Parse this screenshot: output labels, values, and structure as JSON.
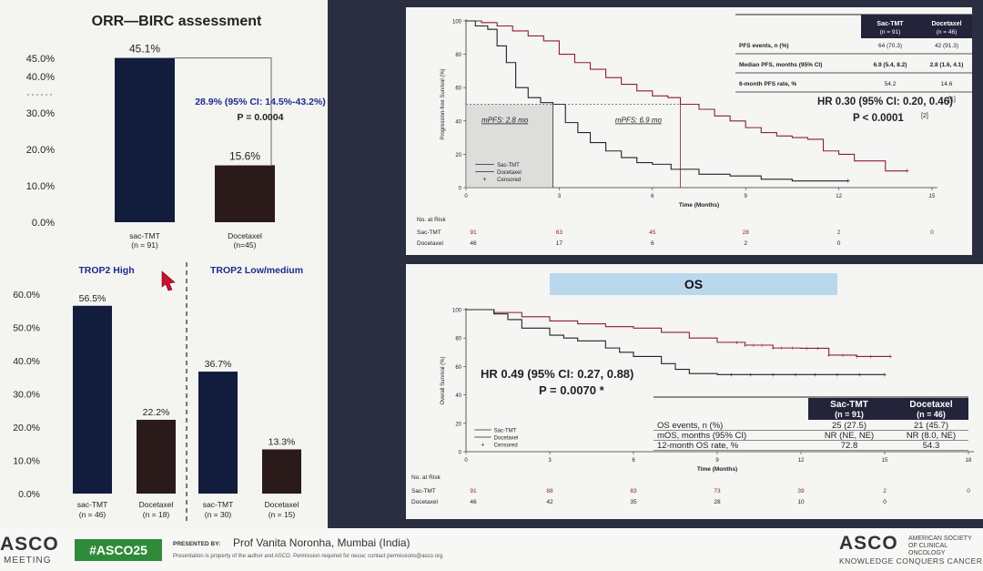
{
  "orr": {
    "title": "ORR—BIRC assessment",
    "yticks": [
      "0.0%",
      "10.0%",
      "20.0%",
      "30.0%",
      "40.0%",
      "45.0%"
    ],
    "bars": [
      {
        "label": "sac-TMT",
        "n": "(n = 91)",
        "value": 45.1,
        "value_label": "45.1%",
        "color": "#121c3c"
      },
      {
        "label": "Docetaxel",
        "n": "(n=45)",
        "value": 15.6,
        "value_label": "15.6%",
        "color": "#2a1a1a"
      }
    ],
    "difference": "28.9% (95% CI: 14.5%-43.2%)",
    "pvalue": "P = 0.0004"
  },
  "trop": {
    "high_title": "TROP2 High",
    "low_title": "TROP2 Low/medium",
    "yticks": [
      "0.0%",
      "10.0%",
      "20.0%",
      "30.0%",
      "40.0%",
      "50.0%",
      "60.0%"
    ],
    "bars": [
      {
        "label": "sac-TMT",
        "n": "(n = 46)",
        "value": 56.5,
        "value_label": "56.5%",
        "color": "#121c3c"
      },
      {
        "label": "Docetaxel",
        "n": "(n = 18)",
        "value": 22.2,
        "value_label": "22.2%",
        "color": "#2a1a1a"
      },
      {
        "label": "sac-TMT",
        "n": "(n = 30)",
        "value": 36.7,
        "value_label": "36.7%",
        "color": "#121c3c"
      },
      {
        "label": "Docetaxel",
        "n": "(n = 15)",
        "value": 13.3,
        "value_label": "13.3%",
        "color": "#2a1a1a"
      }
    ]
  },
  "pfs": {
    "ylabel": "Progression-free Survival (%)",
    "xlabel": "Time (Months)",
    "yticks": [
      0,
      20,
      40,
      60,
      80,
      100
    ],
    "xticks": [
      0,
      3,
      6,
      9,
      12,
      15
    ],
    "mpfs_doc": "mPFS: 2.8 mo",
    "mpfs_sac": "mPFS: 6.9 mo",
    "legend": [
      "Sac-TMT",
      "Docetaxel",
      "Censored"
    ],
    "table": {
      "col1": "Sac-TMT",
      "col1n": "(n = 91)",
      "col2": "Docetaxel",
      "col2n": "(n = 46)",
      "rows": [
        {
          "label": "PFS events, n (%)",
          "a": "64 (70.3)",
          "b": "42 (91.3)"
        },
        {
          "label": "Median PFS, months (95% CI)",
          "a": "6.9 (5.4, 8.2)",
          "b": "2.8 (1.6, 4.1)"
        },
        {
          "label": "6-month PFS rate, %",
          "a": "54.2",
          "b": "14.6"
        }
      ]
    },
    "hr": "HR 0.30 (95% CI: 0.20, 0.46)",
    "hr_ref": "[1]",
    "p": "P < 0.0001",
    "p_ref": "[2]",
    "risk_title": "No. at Risk",
    "risk": [
      {
        "name": "Sac-TMT",
        "values": [
          "91",
          "63",
          "45",
          "28",
          "2",
          "0"
        ]
      },
      {
        "name": "Docetaxel",
        "values": [
          "46",
          "17",
          "6",
          "2",
          "0"
        ]
      }
    ]
  },
  "os": {
    "banner": "OS",
    "ylabel": "Overall Survival (%)",
    "xlabel": "Time (Months)",
    "yticks": [
      0,
      20,
      40,
      60,
      80,
      100
    ],
    "xticks": [
      0,
      3,
      6,
      9,
      12,
      15,
      18
    ],
    "hr": "HR 0.49 (95% CI: 0.27, 0.88)",
    "p": "P = 0.0070 *",
    "legend": [
      "Sac-TMT",
      "Docetaxel",
      "Censored"
    ],
    "table": {
      "col1": "Sac-TMT",
      "col1n": "(n = 91)",
      "col2": "Docetaxel",
      "col2n": "(n = 46)",
      "rows": [
        {
          "label": "OS events, n (%)",
          "a": "25 (27.5)",
          "b": "21 (45.7)"
        },
        {
          "label": "mOS, months (95% CI)",
          "a": "NR (NE, NE)",
          "b": "NR (8.0, NE)"
        },
        {
          "label": "12-month OS rate, %",
          "a": "72.8",
          "b": "54.3"
        }
      ]
    },
    "risk_title": "No. at Risk",
    "risk": [
      {
        "name": "Sac-TMT",
        "values": [
          "91",
          "88",
          "83",
          "73",
          "39",
          "2",
          "0"
        ]
      },
      {
        "name": "Docetaxel",
        "values": [
          "46",
          "42",
          "35",
          "28",
          "10",
          "0"
        ]
      }
    ]
  },
  "footer": {
    "asco_left": "ASCO",
    "meeting": "MEETING",
    "hashtag": "#ASCO25",
    "presented_by": "PRESENTED BY:",
    "presenter": "Prof Vanita Noronha, Mumbai (India)",
    "notice": "Presentation is property of the author and ASCO. Permission required for reuse; contact permissions@asco.org.",
    "asco_right": "ASCO",
    "society": "AMERICAN SOCIETY OF CLINICAL ONCOLOGY",
    "tagline": "KNOWLEDGE CONQUERS CANCER"
  },
  "chart_data": [
    {
      "type": "bar",
      "title": "ORR—BIRC assessment",
      "categories": [
        "sac-TMT (n = 91)",
        "Docetaxel (n=45)"
      ],
      "values": [
        45.1,
        15.6
      ],
      "ylim": [
        0,
        45
      ],
      "annotation": "28.9% (95% CI: 14.5%-43.2%) P = 0.0004"
    },
    {
      "type": "bar",
      "categories": [
        "sac-TMT (n = 46)",
        "Docetaxel (n = 18)",
        "sac-TMT (n = 30)",
        "Docetaxel (n = 15)"
      ],
      "groups": [
        "TROP2 High",
        "TROP2 High",
        "TROP2 Low/medium",
        "TROP2 Low/medium"
      ],
      "values": [
        56.5,
        22.2,
        36.7,
        13.3
      ],
      "ylim": [
        0,
        60
      ]
    },
    {
      "type": "line",
      "xlabel": "Time (Months)",
      "ylabel": "Progression-free Survival (%)",
      "xlim": [
        0,
        15
      ],
      "ylim": [
        0,
        100
      ],
      "series": [
        {
          "name": "Sac-TMT",
          "color": "#8a1e36",
          "x": [
            0,
            0.5,
            1,
            1.5,
            2,
            2.5,
            3,
            3.5,
            4,
            4.5,
            5,
            5.5,
            6,
            6.5,
            6.9,
            7.5,
            8,
            8.5,
            9,
            9.5,
            10,
            10.5,
            11,
            11.5,
            12,
            12.5,
            13.5,
            14.2
          ],
          "y": [
            100,
            99,
            97,
            94,
            91,
            88,
            80,
            75,
            71,
            66,
            62,
            58,
            55,
            54,
            50,
            47,
            43,
            40,
            36,
            33,
            31,
            30,
            29,
            22,
            20,
            16,
            10,
            10
          ]
        },
        {
          "name": "Docetaxel",
          "color": "#222222",
          "x": [
            0,
            0.3,
            0.7,
            1,
            1.3,
            1.6,
            2,
            2.4,
            2.8,
            3.2,
            3.6,
            4,
            4.5,
            5,
            5.5,
            6,
            6.6,
            7.5,
            8.5,
            9.5,
            10.5,
            11.5,
            12.3
          ],
          "y": [
            100,
            97,
            95,
            85,
            75,
            60,
            54,
            51,
            50,
            39,
            33,
            27,
            22,
            18,
            15,
            14,
            11,
            8,
            7,
            5,
            4,
            4,
            4
          ]
        }
      ]
    },
    {
      "type": "line",
      "xlabel": "Time (Months)",
      "ylabel": "Overall Survival (%)",
      "xlim": [
        0,
        18
      ],
      "ylim": [
        0,
        100
      ],
      "series": [
        {
          "name": "Sac-TMT",
          "color": "#8a1e36",
          "x": [
            0,
            1,
            2,
            3,
            4,
            5,
            6,
            7,
            8,
            9,
            10,
            11,
            12,
            13,
            14,
            15.2
          ],
          "y": [
            100,
            98,
            95,
            92,
            90,
            88,
            87,
            84,
            80,
            77,
            75,
            73,
            72.8,
            68,
            67,
            67
          ]
        },
        {
          "name": "Docetaxel",
          "color": "#222222",
          "x": [
            0,
            1,
            1.5,
            2,
            3,
            3.5,
            4,
            5,
            5.5,
            6,
            7,
            7.5,
            8,
            8.5,
            9,
            10,
            11,
            12,
            13,
            14,
            15
          ],
          "y": [
            100,
            97,
            93,
            87,
            82,
            80,
            78,
            73,
            70,
            67,
            62,
            58,
            55,
            55,
            54.3,
            54.3,
            54.3,
            54.3,
            54.3,
            54.3,
            54.3
          ]
        }
      ]
    }
  ]
}
